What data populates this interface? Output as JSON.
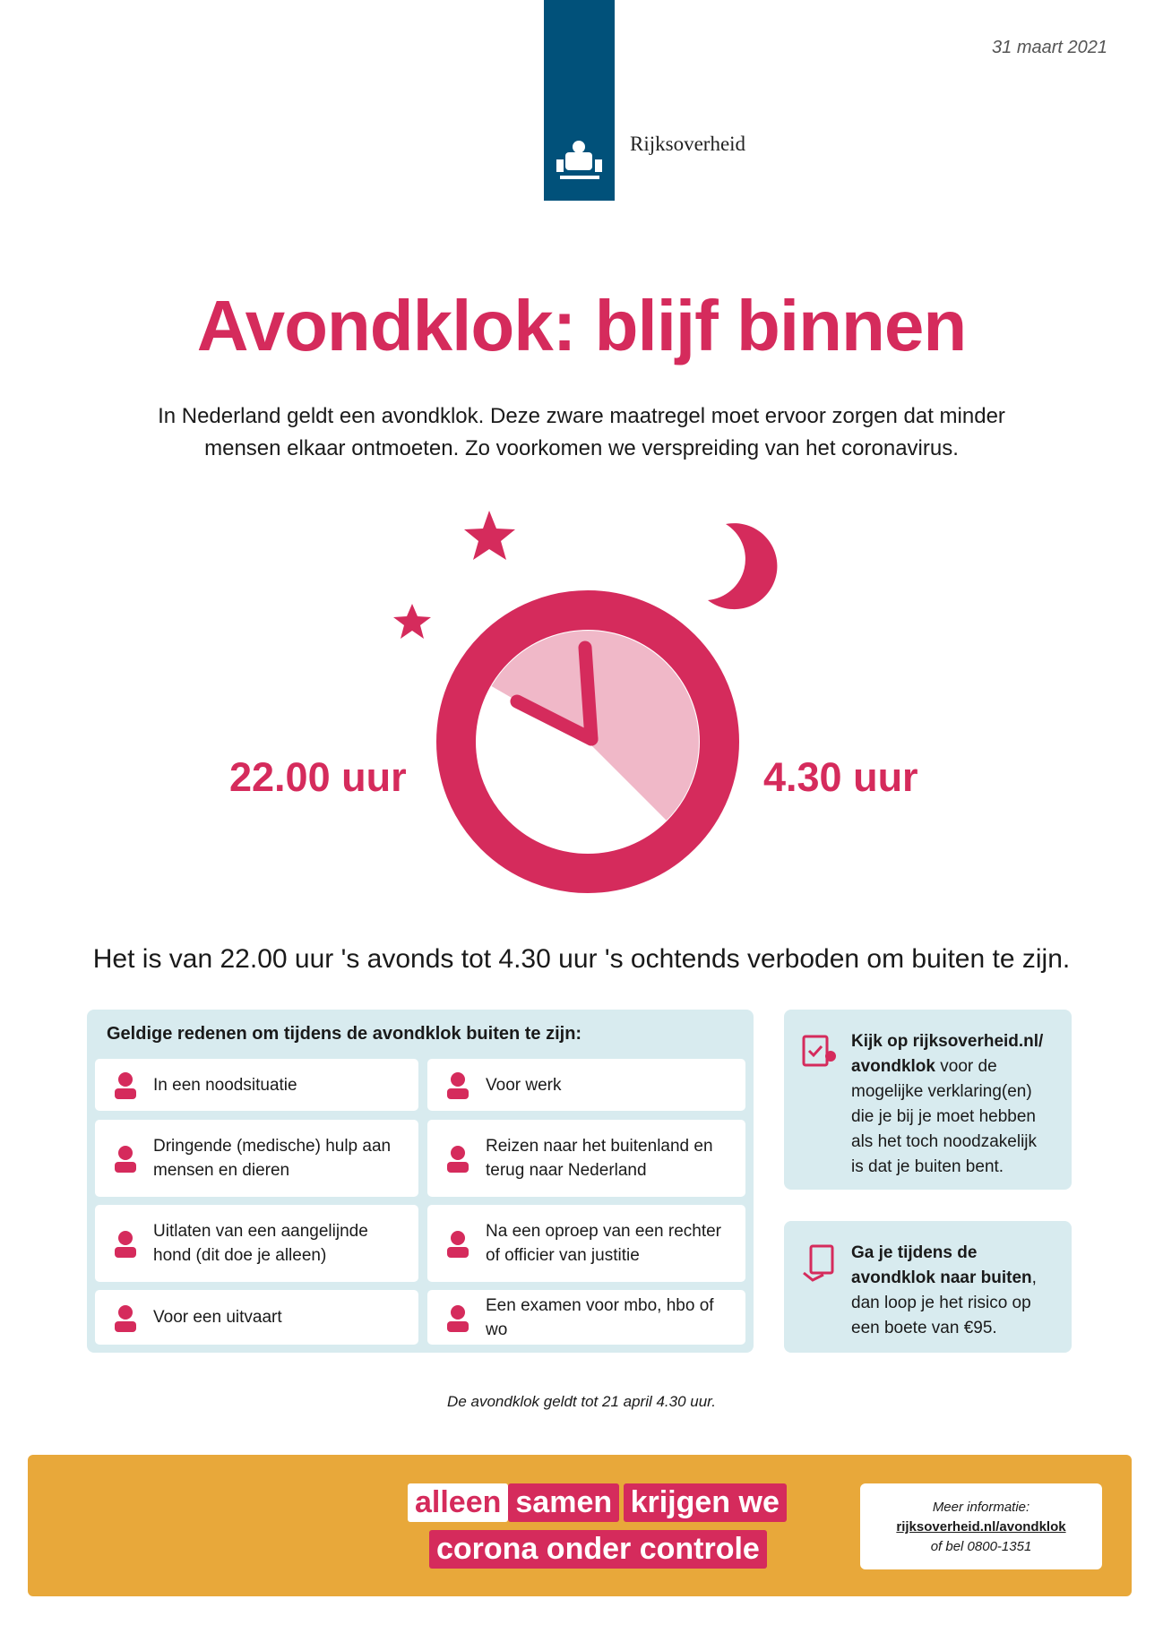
{
  "header": {
    "date": "31 maart 2021",
    "logo_text": "Rijksoverheid"
  },
  "title": "Avondklok: blijf binnen",
  "intro": [
    "In Nederland geldt een avondklok. Deze zware maatregel moet ervoor zorgen dat minder",
    "mensen elkaar ontmoeten. Zo voorkomen we verspreiding van het coronavirus."
  ],
  "clock": {
    "start_label": "22.00 uur",
    "end_label": "4.30 uur"
  },
  "statement": "Het is van 22.00 uur 's avonds tot 4.30 uur 's ochtends verboden om buiten te zijn.",
  "reasons": {
    "title": "Geldige redenen om tijdens de avondklok buiten te zijn:",
    "items": [
      "In een noodsituatie",
      "Voor werk",
      "Dringende (medische) hulp aan mensen en dieren",
      "Reizen naar het buitenland en terug naar Nederland",
      "Uitlaten van een aangelijnde hond (dit doe je alleen)",
      "Na een oproep van een rechter of officier van justitie",
      "Voor een uitvaart",
      "Een examen voor mbo, hbo of wo"
    ]
  },
  "info_boxes": [
    {
      "bold": "Kijk op rijksoverheid.nl/ avondklok",
      "text": " voor de mogelijke verklaring(en) die je bij je moet hebben als het toch noodzakelijk is dat je buiten bent."
    },
    {
      "bold": "Ga je tijdens de avondklok naar buiten",
      "text": ", dan loop je het risico op een boete van €95."
    }
  ],
  "footnote": "De avondklok geldt tot 21 april 4.30 uur.",
  "footer": {
    "slogan": [
      "alleen",
      "samen",
      "krijgen we",
      "corona onder controle"
    ],
    "more_info": {
      "label": "Meer informatie:",
      "link": "rijksoverheid.nl/avondklok",
      "phone": "of bel 0800-1351"
    }
  }
}
